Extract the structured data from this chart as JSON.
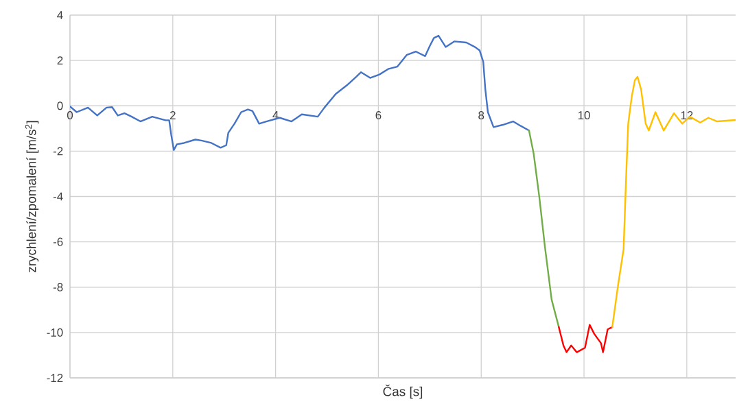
{
  "chart_data": {
    "type": "line",
    "xlabel": "Čas [s]",
    "ylabel": "zrychlení/zpomalení [m/s$^{2}$]",
    "xlim": [
      0,
      12.95
    ],
    "ylim": [
      -12,
      4
    ],
    "xticks": [
      0,
      2,
      4,
      6,
      8,
      10,
      12
    ],
    "yticks": [
      -12,
      -10,
      -8,
      -6,
      -4,
      -2,
      0,
      2,
      4
    ],
    "grid": true,
    "line_style": "solid",
    "series": [
      {
        "color": "#4472c4",
        "x": [
          0,
          0.13,
          0.35,
          0.53,
          0.71,
          0.82,
          0.93,
          1.06,
          1.2,
          1.37,
          1.6,
          1.86,
          1.93,
          1.97,
          2.02,
          2.08,
          2.22,
          2.44,
          2.57,
          2.75,
          2.93,
          3.04,
          3.08,
          3.2,
          3.33,
          3.46,
          3.55,
          3.68,
          3.82,
          4.08,
          4.31,
          4.51,
          4.82,
          4.95,
          5.17,
          5.4,
          5.57,
          5.66,
          5.84,
          6.02,
          6.2,
          6.37,
          6.55,
          6.73,
          6.91,
          7.0,
          7.08,
          7.17,
          7.31,
          7.48,
          7.71,
          7.88,
          7.97,
          8.04,
          8.08,
          8.13,
          8.24,
          8.42,
          8.62,
          8.77,
          8.93
        ],
        "values": [
          -0.03,
          -0.28,
          -0.08,
          -0.43,
          -0.08,
          -0.06,
          -0.43,
          -0.33,
          -0.48,
          -0.69,
          -0.48,
          -0.64,
          -0.64,
          -1.29,
          -1.95,
          -1.7,
          -1.64,
          -1.49,
          -1.54,
          -1.64,
          -1.85,
          -1.74,
          -1.19,
          -0.79,
          -0.28,
          -0.16,
          -0.23,
          -0.79,
          -0.69,
          -0.53,
          -0.69,
          -0.38,
          -0.48,
          -0.08,
          0.52,
          0.93,
          1.28,
          1.48,
          1.23,
          1.38,
          1.63,
          1.73,
          2.24,
          2.39,
          2.19,
          2.64,
          2.99,
          3.09,
          2.59,
          2.84,
          2.79,
          2.59,
          2.44,
          1.94,
          0.73,
          -0.28,
          -0.94,
          -0.84,
          -0.69,
          -0.89,
          -1.09
        ]
      },
      {
        "color": "#70ad47",
        "x": [
          8.93,
          9.02,
          9.13,
          9.24,
          9.37,
          9.51
        ],
        "values": [
          -1.09,
          -2.1,
          -4.01,
          -6.23,
          -8.55,
          -9.76
        ]
      },
      {
        "color": "#ff0000",
        "x": [
          9.51,
          9.6,
          9.66,
          9.75,
          9.86,
          10.02,
          10.11,
          10.2,
          10.33,
          10.37,
          10.46,
          10.55
        ],
        "values": [
          -9.76,
          -10.57,
          -10.87,
          -10.57,
          -10.87,
          -10.67,
          -9.66,
          -10.06,
          -10.47,
          -10.87,
          -9.86,
          -9.76
        ]
      },
      {
        "color": "#ffc000",
        "x": [
          10.55,
          10.66,
          10.77,
          10.82,
          10.86,
          10.93,
          10.99,
          11.04,
          11.11,
          11.2,
          11.26,
          11.39,
          11.55,
          11.75,
          11.91,
          12.06,
          12.26,
          12.42,
          12.59,
          12.95
        ],
        "values": [
          -9.76,
          -7.95,
          -6.33,
          -3.11,
          -0.79,
          0.42,
          1.13,
          1.28,
          0.73,
          -0.79,
          -1.09,
          -0.28,
          -1.09,
          -0.33,
          -0.79,
          -0.48,
          -0.74,
          -0.53,
          -0.69,
          -0.63
        ]
      }
    ]
  }
}
